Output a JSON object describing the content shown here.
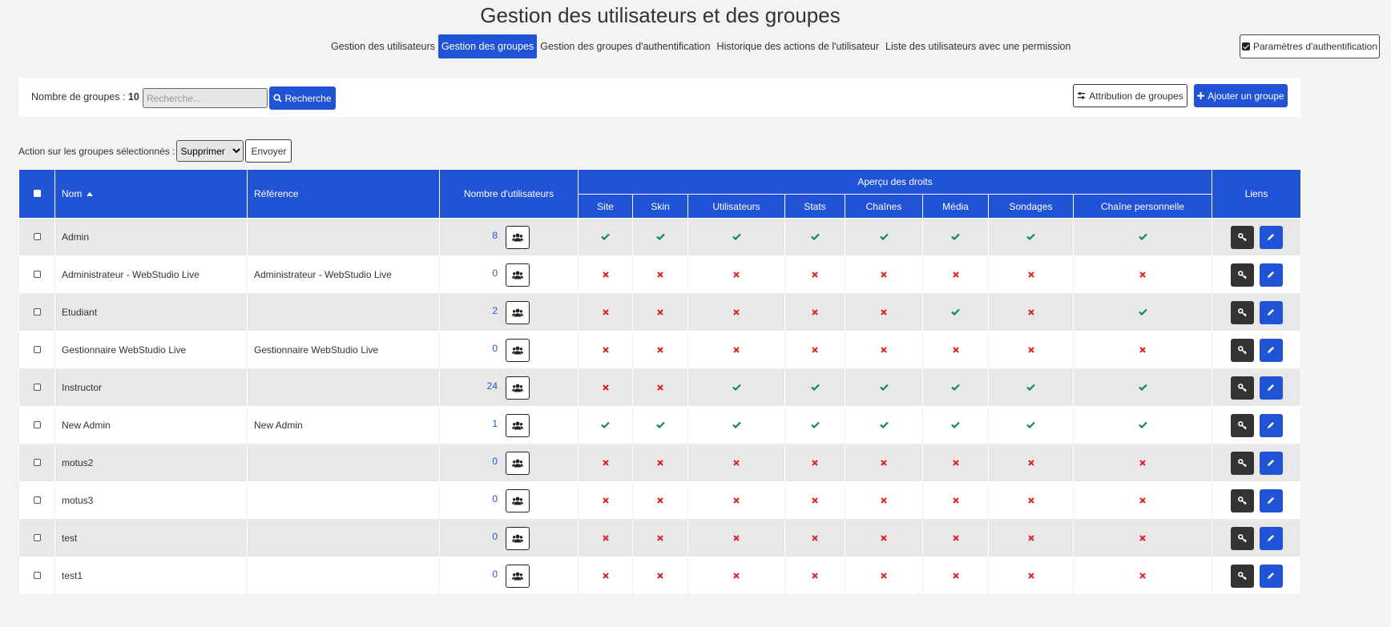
{
  "page": {
    "title": "Gestion des utilisateurs et des groupes"
  },
  "nav": {
    "tabs": [
      {
        "label": "Gestion des utilisateurs",
        "active": false
      },
      {
        "label": "Gestion des groupes",
        "active": true
      },
      {
        "label": "Gestion des groupes d'authentification",
        "active": false
      },
      {
        "label": "Historique des actions de l'utilisateur",
        "active": false
      },
      {
        "label": "Liste des utilisateurs avec une permission",
        "active": false
      }
    ],
    "auth_params_label": "Paramètres d'authentification"
  },
  "toolbar": {
    "count_label": "Nombre de groupes :",
    "count_value": "10",
    "search_placeholder": "Recherche...",
    "search_value": "",
    "search_button": "Recherche",
    "attribution_button": "Attribution de groupes",
    "add_button": "Ajouter un groupe"
  },
  "bulk": {
    "label": "Action sur les groupes sélectionnés :",
    "selected_action": "Supprimer",
    "send_button": "Envoyer"
  },
  "table": {
    "headers": {
      "name": "Nom",
      "reference": "Référence",
      "users": "Nombre d'utilisateurs",
      "rights": "Aperçu des droits",
      "links": "Liens",
      "rights_columns": [
        "Site",
        "Skin",
        "Utilisateurs",
        "Stats",
        "Chaînes",
        "Média",
        "Sondages",
        "Chaîne personnelle"
      ]
    },
    "rows": [
      {
        "name": "Admin",
        "reference": "",
        "users": "8",
        "rights": [
          true,
          true,
          true,
          true,
          true,
          true,
          true,
          true
        ]
      },
      {
        "name": "Administrateur - WebStudio Live",
        "reference": "Administrateur - WebStudio Live",
        "users": "0",
        "rights": [
          false,
          false,
          false,
          false,
          false,
          false,
          false,
          false
        ]
      },
      {
        "name": "Etudiant",
        "reference": "",
        "users": "2",
        "rights": [
          false,
          false,
          false,
          false,
          false,
          true,
          false,
          true
        ]
      },
      {
        "name": "Gestionnaire WebStudio Live",
        "reference": "Gestionnaire WebStudio Live",
        "users": "0",
        "rights": [
          false,
          false,
          false,
          false,
          false,
          false,
          false,
          false
        ]
      },
      {
        "name": "Instructor",
        "reference": "",
        "users": "24",
        "rights": [
          false,
          false,
          true,
          true,
          true,
          true,
          true,
          true
        ]
      },
      {
        "name": "New Admin",
        "reference": "New Admin",
        "users": "1",
        "rights": [
          true,
          true,
          true,
          true,
          true,
          true,
          true,
          true
        ]
      },
      {
        "name": "motus2",
        "reference": "",
        "users": "0",
        "rights": [
          false,
          false,
          false,
          false,
          false,
          false,
          false,
          false
        ]
      },
      {
        "name": "motus3",
        "reference": "",
        "users": "0",
        "rights": [
          false,
          false,
          false,
          false,
          false,
          false,
          false,
          false
        ]
      },
      {
        "name": "test",
        "reference": "",
        "users": "0",
        "rights": [
          false,
          false,
          false,
          false,
          false,
          false,
          false,
          false
        ]
      },
      {
        "name": "test1",
        "reference": "",
        "users": "0",
        "rights": [
          false,
          false,
          false,
          false,
          false,
          false,
          false,
          false
        ]
      }
    ]
  },
  "colors": {
    "primary": "#2153d6",
    "ok": "#0f8a4a",
    "no": "#e02020",
    "dark_button": "#333333"
  }
}
